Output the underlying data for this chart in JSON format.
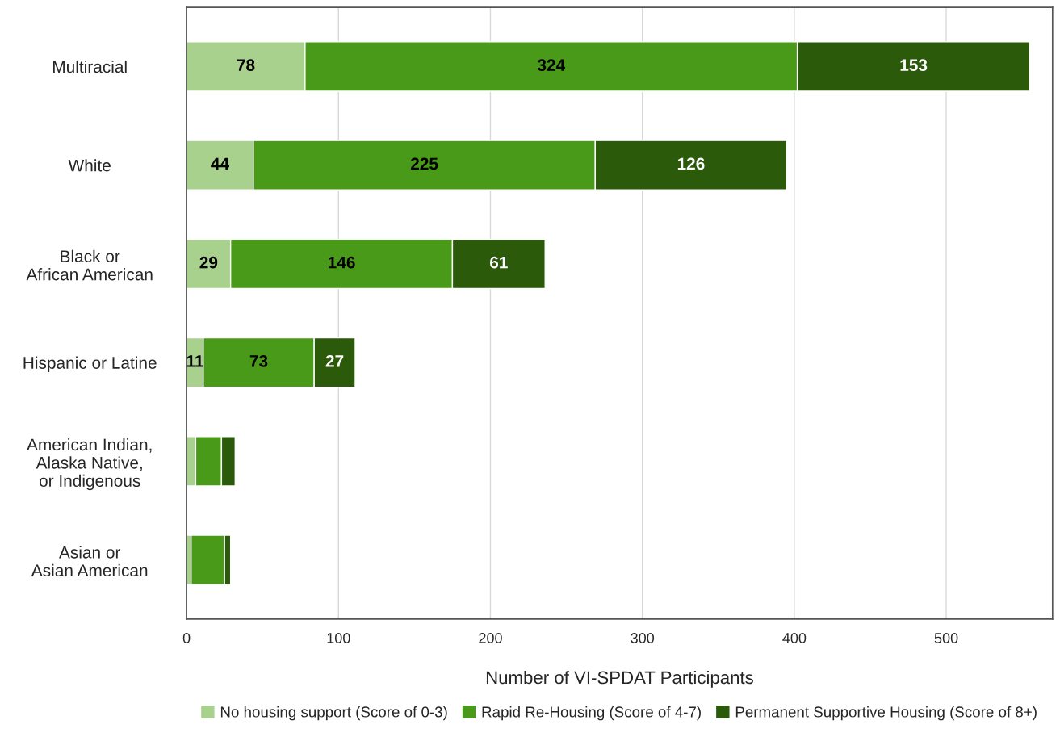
{
  "chart_data": {
    "type": "bar",
    "orientation": "horizontal",
    "stacked": true,
    "xlabel": "Number of VI-SPDAT Participants",
    "categories": [
      "Multiracial",
      "White",
      "Black or\nAfrican American",
      "Hispanic or Latine",
      "American Indian,\nAlaska Native,\nor Indigenous",
      "Asian or\nAsian American"
    ],
    "series": [
      {
        "name": "No housing support (Score of 0-3)",
        "color": "#a9d18e",
        "values": [
          78,
          44,
          29,
          11,
          6,
          3
        ],
        "value_labels": [
          "78",
          "44",
          "29",
          "11",
          null,
          null
        ]
      },
      {
        "name": "Rapid Re-Housing (Score of 4-7)",
        "color": "#4a9a1a",
        "values": [
          324,
          225,
          146,
          73,
          17,
          22
        ],
        "value_labels": [
          "324",
          "225",
          "146",
          "73",
          null,
          null
        ]
      },
      {
        "name": "Permanent Supportive Housing (Score of 8+)",
        "color": "#2a5a0a",
        "values": [
          153,
          126,
          61,
          27,
          9,
          4
        ],
        "value_labels": [
          "153",
          "126",
          "61",
          "27",
          null,
          null
        ]
      }
    ],
    "xlim": [
      0,
      570
    ],
    "xticks": [
      0,
      100,
      200,
      300,
      400,
      500
    ],
    "grid": "x",
    "legend": "bottom"
  }
}
